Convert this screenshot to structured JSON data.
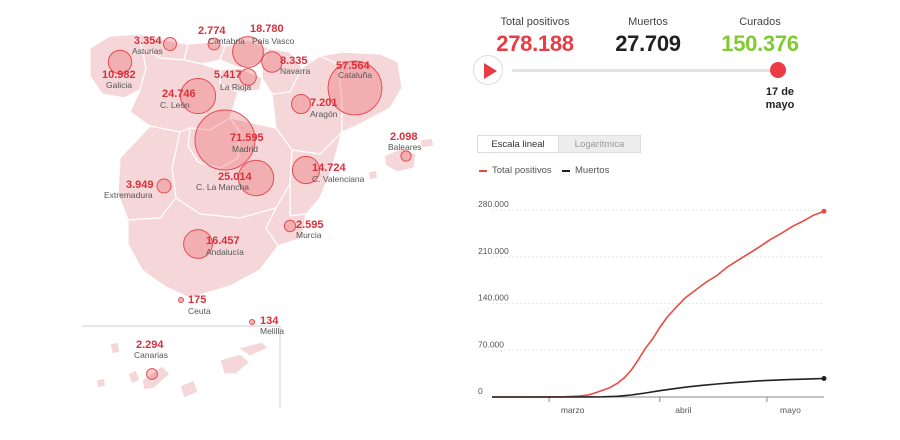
{
  "stats": [
    {
      "label": "Total positivos",
      "value": "278.188",
      "color": "#ea3c44"
    },
    {
      "label": "Muertos",
      "value": "27.709",
      "color": "#222222"
    },
    {
      "label": "Curados",
      "value": "150.376",
      "color": "#7fcb31"
    }
  ],
  "timeline": {
    "date_line1": "17 de",
    "date_line2": "mayo"
  },
  "scale_toggle": {
    "linear_label": "Escala lineal",
    "log_label": "Logarítmica",
    "selected": "linear"
  },
  "legend": [
    {
      "label": "Total positivos",
      "color": "#ea4a40"
    },
    {
      "label": "Muertos",
      "color": "#222222"
    }
  ],
  "map_regions": [
    {
      "name": "Asturias",
      "value": "3.354",
      "cases": 3354
    },
    {
      "name": "Cantabria",
      "value": "2.774",
      "cases": 2774
    },
    {
      "name": "País Vasco",
      "value": "18.780",
      "cases": 18780
    },
    {
      "name": "Galicia",
      "value": "10.982",
      "cases": 10982
    },
    {
      "name": "Navarra",
      "value": "8.335",
      "cases": 8335
    },
    {
      "name": "La Rioja",
      "value": "5.417",
      "cases": 5417
    },
    {
      "name": "Cataluña",
      "value": "57.564",
      "cases": 57564
    },
    {
      "name": "C. León",
      "value": "24.746",
      "cases": 24746
    },
    {
      "name": "Aragón",
      "value": "7.201",
      "cases": 7201
    },
    {
      "name": "Baleares",
      "value": "2.098",
      "cases": 2098
    },
    {
      "name": "Madrid",
      "value": "71.595",
      "cases": 71595
    },
    {
      "name": "Extremadura",
      "value": "3.949",
      "cases": 3949
    },
    {
      "name": "C. La Mancha",
      "value": "25.014",
      "cases": 25014
    },
    {
      "name": "C. Valenciana",
      "value": "14.724",
      "cases": 14724
    },
    {
      "name": "Murcia",
      "value": "2.595",
      "cases": 2595
    },
    {
      "name": "Andalucía",
      "value": "16.457",
      "cases": 16457
    },
    {
      "name": "Ceuta",
      "value": "175",
      "cases": 175
    },
    {
      "name": "Melilla",
      "value": "134",
      "cases": 134
    },
    {
      "name": "Canarias",
      "value": "2.294",
      "cases": 2294
    }
  ],
  "chart_data": {
    "type": "line",
    "x_ticks": [
      "marzo",
      "abril",
      "mayo"
    ],
    "y_ticks": [
      "0",
      "70.000",
      "140.000",
      "210.000",
      "280.000"
    ],
    "ylim": [
      0,
      280000
    ],
    "x_range": [
      "2020-02-14",
      "2020-05-17"
    ],
    "grid": true,
    "series": [
      {
        "name": "Total positivos",
        "color": "#ea4a40",
        "x": [
          "2020-02-14",
          "2020-02-25",
          "2020-03-01",
          "2020-03-05",
          "2020-03-09",
          "2020-03-12",
          "2020-03-14",
          "2020-03-16",
          "2020-03-18",
          "2020-03-20",
          "2020-03-22",
          "2020-03-24",
          "2020-03-26",
          "2020-03-28",
          "2020-03-30",
          "2020-04-01",
          "2020-04-03",
          "2020-04-05",
          "2020-04-08",
          "2020-04-11",
          "2020-04-14",
          "2020-04-17",
          "2020-04-20",
          "2020-04-23",
          "2020-04-26",
          "2020-04-29",
          "2020-05-02",
          "2020-05-05",
          "2020-05-08",
          "2020-05-11",
          "2020-05-14",
          "2020-05-17"
        ],
        "values": [
          0,
          0,
          100,
          300,
          1200,
          3000,
          6500,
          10000,
          14000,
          20000,
          28500,
          40000,
          56000,
          73000,
          87000,
          104000,
          119000,
          131000,
          148000,
          160000,
          172000,
          182000,
          195000,
          205000,
          215000,
          225000,
          236000,
          245000,
          255000,
          263000,
          272000,
          278188
        ]
      },
      {
        "name": "Muertos",
        "color": "#222222",
        "x": [
          "2020-02-14",
          "2020-03-05",
          "2020-03-12",
          "2020-03-16",
          "2020-03-20",
          "2020-03-24",
          "2020-03-28",
          "2020-04-01",
          "2020-04-05",
          "2020-04-09",
          "2020-04-13",
          "2020-04-17",
          "2020-04-21",
          "2020-04-25",
          "2020-04-29",
          "2020-05-03",
          "2020-05-07",
          "2020-05-11",
          "2020-05-14",
          "2020-05-17"
        ],
        "values": [
          0,
          0,
          100,
          300,
          1000,
          3000,
          6000,
          9400,
          12400,
          15200,
          17500,
          19500,
          21300,
          22800,
          24300,
          25200,
          26000,
          26700,
          27300,
          27709
        ]
      }
    ]
  }
}
